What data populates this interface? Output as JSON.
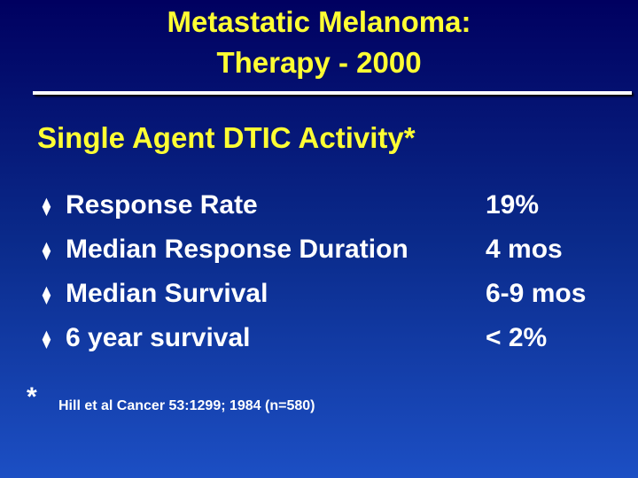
{
  "title": [
    "Metastatic Melanoma:",
    "Therapy - 2000"
  ],
  "subtitle": "Single Agent DTIC Activity*",
  "items": [
    {
      "label": "Response Rate",
      "value": "19%"
    },
    {
      "label": "Median Response Duration",
      "value": "4 mos"
    },
    {
      "label": "Median Survival",
      "value": "6-9 mos"
    },
    {
      "label": "6 year survival",
      "value": "< 2%"
    }
  ],
  "footnote": {
    "mark": "*",
    "text": "Hill et al Cancer 53:1299; 1984 (n=580)"
  }
}
